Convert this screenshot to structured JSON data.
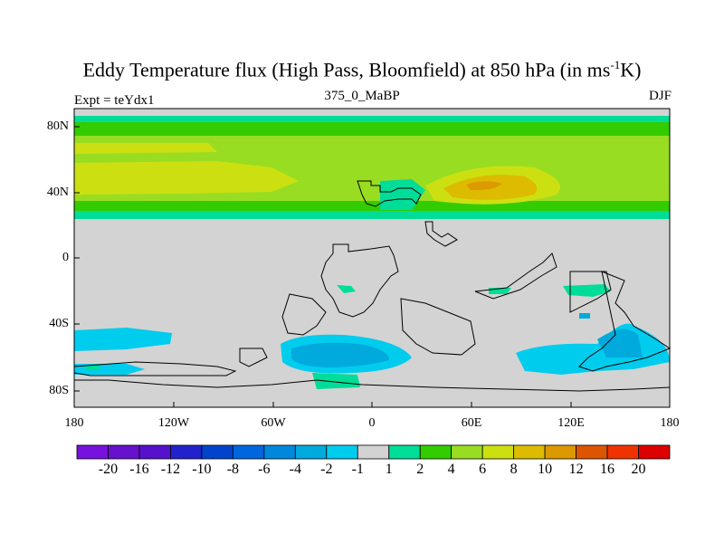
{
  "title_main": "Eddy Temperature flux (High Pass, Bloomfield) at 850 hPa (in ms",
  "title_exp": "-1",
  "title_end": "K)",
  "subtitle_left": "Expt = teYdx1",
  "subtitle_center": "375_0_MaBP",
  "subtitle_right": "DJF",
  "colors": {
    "land_gray": "#d3d3d3",
    "c1": "#00dd99",
    "c2": "#33cc00",
    "c4": "#99dd22",
    "c6": "#cce011",
    "c8": "#ddbb00",
    "c10": "#dd9900",
    "cm1": "#00ccee",
    "cm2": "#00aadd"
  },
  "chart_data": {
    "type": "map",
    "lon_range": [
      -180,
      180
    ],
    "lat_range": [
      -90,
      90
    ],
    "y_ticks": [
      "80N",
      "40N",
      "0",
      "40S",
      "80S"
    ],
    "x_ticks": [
      "180",
      "120W",
      "60W",
      "0",
      "60E",
      "120E",
      "180"
    ],
    "colorbar_labels": [
      "-20",
      "-16",
      "-12",
      "-10",
      "-8",
      "-6",
      "-4",
      "-2",
      "-1",
      "1",
      "2",
      "4",
      "6",
      "8",
      "10",
      "12",
      "16",
      "20"
    ],
    "colorbar_colors": [
      "#7711dd",
      "#6611cc",
      "#5511cc",
      "#2222cc",
      "#0044cc",
      "#0066dd",
      "#0088dd",
      "#00aadd",
      "#00ccee",
      "#d3d3d3",
      "#00dd99",
      "#33cc00",
      "#99dd22",
      "#cce011",
      "#ddbb00",
      "#dd9900",
      "#dd5500",
      "#ee3300",
      "#dd0000"
    ]
  }
}
